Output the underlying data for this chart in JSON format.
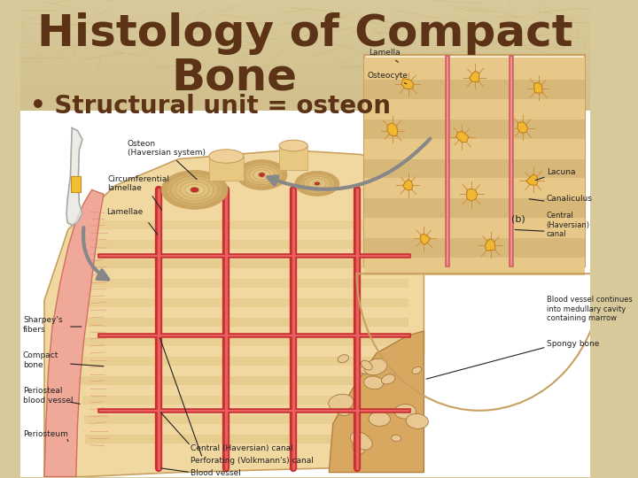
{
  "title_line1": "Histology of Compact",
  "title_line2": "Bone",
  "bullet_text": "• Structural unit = osteon",
  "title_color": "#5C3317",
  "bullet_color": "#5C3317",
  "title_fontsize": 36,
  "bullet_fontsize": 20,
  "bg_top_color": "#D8C99A",
  "bg_bottom_color": "#C8B882",
  "diagram_bg": "#F5E6C8",
  "bone_tan": "#E8C888",
  "bone_dark": "#C8A060",
  "periosteum_pink": "#F0B0A0",
  "blood_red": "#C83030",
  "label_color": "#222222",
  "label_fontsize": 6.5,
  "fig_width": 7.2,
  "fig_height": 5.4,
  "dpi": 100
}
